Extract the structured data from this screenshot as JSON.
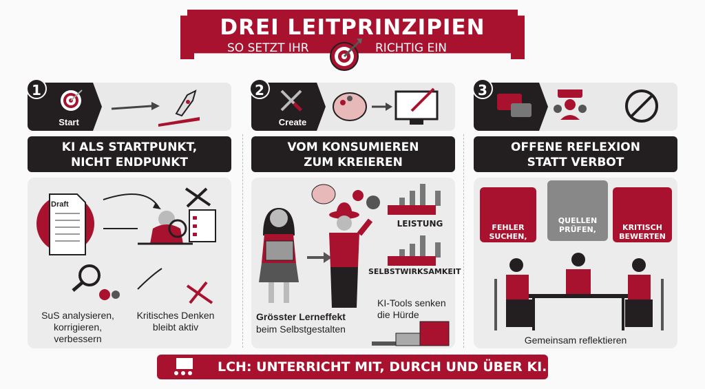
{
  "header": {
    "title": "DREI LEITPRINZIPIEN",
    "subtitle_left": "SO SETZT IHR",
    "subtitle_right": "RICHTIG EIN"
  },
  "principles": [
    {
      "number": "1",
      "strip_label": "Start",
      "title_line1": "KI ALS STARTPUNKT,",
      "title_line2": "NICHT ENDPUNKT",
      "draft_label": "Draft",
      "caption_left": "SuS analysieren, korrigieren, verbessern",
      "caption_right": "Kritisches Denken bleibt aktiv"
    },
    {
      "number": "2",
      "strip_label": "Create",
      "title_line1": "VOM KONSUMIEREN",
      "title_line2": "ZUM KREIEREN",
      "chart_label_1": "LEISTUNG",
      "chart_label_2": "SELBSTWIRKSAMKEIT",
      "caption_left_1": "Grösster Lerneffekt",
      "caption_left_2": "beim Selbstgestalten",
      "caption_right": "KI-Tools senken die Hürde"
    },
    {
      "number": "3",
      "title_line1": "OFFENE REFLEXION",
      "title_line2": "STATT VERBOT",
      "bubbles": [
        "FEHLER SUCHEN,",
        "QUELLEN PRÜFEN,",
        "KRITISCH BEWERTEN"
      ],
      "caption": "Gemeinsam reflektieren"
    }
  ],
  "footer": {
    "text": "LCH: UNTERRICHT MIT, DURCH UND ÜBER KI."
  },
  "colors": {
    "accent": "#a8122e",
    "dark": "#231f20",
    "panel": "#ececec"
  }
}
